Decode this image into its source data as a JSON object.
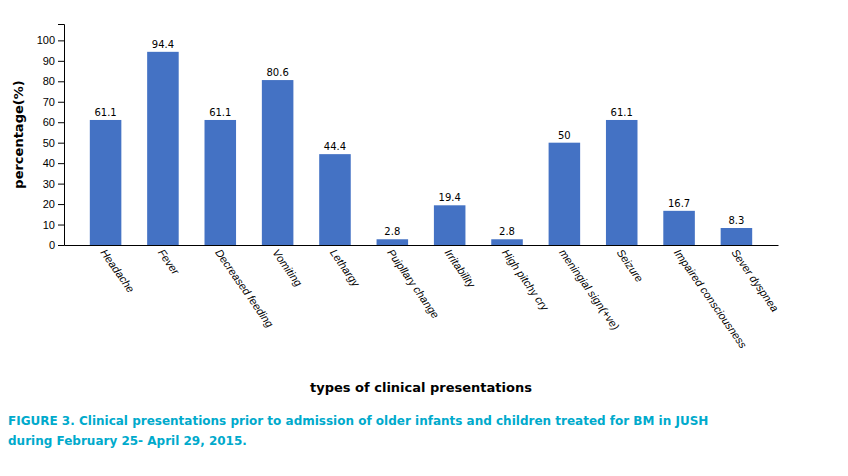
{
  "chart_data": {
    "type": "bar",
    "categories": [
      "Headache",
      "Fever",
      "Decreased feeding",
      "Vomiting",
      "Lethargy",
      "Puipllary change",
      "Irritability",
      "High pitchy cry",
      "meningial sign(+ve)",
      "Seizure",
      "Impaired consciousness",
      "Sever dyspnea"
    ],
    "values": [
      61.1,
      94.4,
      61.1,
      80.6,
      44.4,
      2.8,
      19.4,
      2.8,
      50,
      61.1,
      16.7,
      8.3
    ],
    "color": "#4472C4",
    "ylabel": "percentage(%)",
    "xlabel": "types of clinical presentations",
    "ylim": [
      0,
      108
    ],
    "yticks": [
      0,
      10,
      20,
      30,
      40,
      50,
      60,
      70,
      80,
      90,
      100
    ],
    "grid": false,
    "data_labels": true,
    "annotations": [
      {
        "text": "FIGURE 3. Clinical presentations prior to admission of older infants and children treated for BM in JUSH",
        "color": "#00AACC"
      },
      {
        "text": "during February 25- April 29, 2015.",
        "color": "#00AACC"
      }
    ]
  }
}
